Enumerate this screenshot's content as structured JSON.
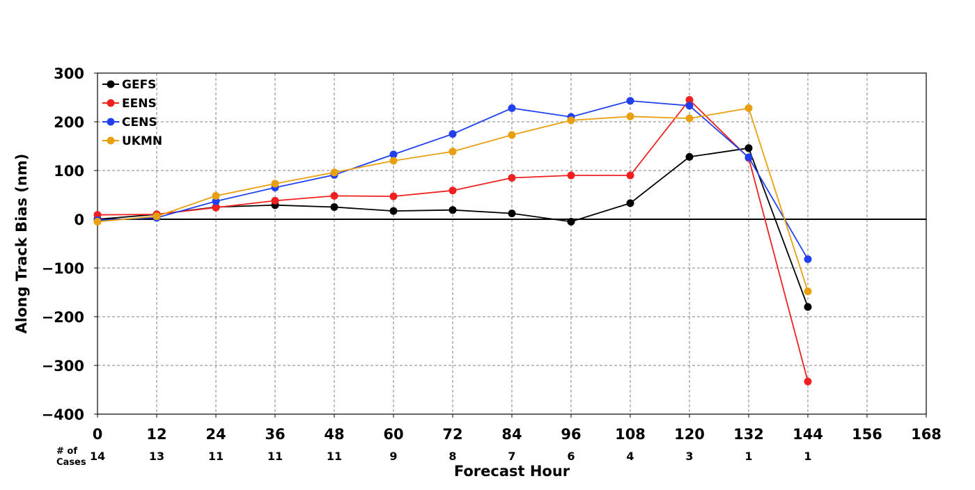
{
  "chart_data": {
    "type": "line",
    "title": "",
    "xlabel": "Forecast Hour",
    "ylabel": "Along Track Bias (nm)",
    "xlim": [
      0,
      168
    ],
    "ylim": [
      -400,
      300
    ],
    "xticks": [
      0,
      12,
      24,
      36,
      48,
      60,
      72,
      84,
      96,
      108,
      120,
      132,
      144,
      156,
      168
    ],
    "yticks": [
      300,
      200,
      100,
      0,
      -100,
      -200,
      -300,
      -400
    ],
    "ytick_labels": [
      "300",
      "200",
      "100",
      "0",
      "−100",
      "−200",
      "−300",
      "−400"
    ],
    "grid": true,
    "legend_position": "top-left",
    "cases_label_line1": "# of",
    "cases_label_line2": "Cases",
    "cases": [
      {
        "x": 0,
        "n": "14"
      },
      {
        "x": 12,
        "n": "13"
      },
      {
        "x": 24,
        "n": "11"
      },
      {
        "x": 36,
        "n": "11"
      },
      {
        "x": 48,
        "n": "11"
      },
      {
        "x": 60,
        "n": "9"
      },
      {
        "x": 72,
        "n": "8"
      },
      {
        "x": 84,
        "n": "7"
      },
      {
        "x": 96,
        "n": "6"
      },
      {
        "x": 108,
        "n": "4"
      },
      {
        "x": 120,
        "n": "3"
      },
      {
        "x": 132,
        "n": "1"
      },
      {
        "x": 144,
        "n": "1"
      }
    ],
    "x": [
      0,
      12,
      24,
      36,
      48,
      60,
      72,
      84,
      96,
      108,
      120,
      132,
      144
    ],
    "series": [
      {
        "name": "GEFS",
        "color": "#000000",
        "values": [
          0,
          10,
          25,
          29,
          25,
          17,
          19,
          12,
          -5,
          33,
          128,
          146,
          -180
        ]
      },
      {
        "name": "EENS",
        "color": "#f02020",
        "values": [
          9,
          10,
          24,
          38,
          48,
          47,
          59,
          85,
          90,
          90,
          245,
          126,
          -333
        ]
      },
      {
        "name": "CENS",
        "color": "#2040f0",
        "values": [
          -2,
          3,
          37,
          65,
          91,
          133,
          175,
          228,
          210,
          243,
          233,
          127,
          -82
        ]
      },
      {
        "name": "UKMN",
        "color": "#e8a010",
        "values": [
          -5,
          6,
          48,
          73,
          96,
          120,
          139,
          173,
          203,
          211,
          207,
          228,
          -148
        ]
      }
    ]
  }
}
